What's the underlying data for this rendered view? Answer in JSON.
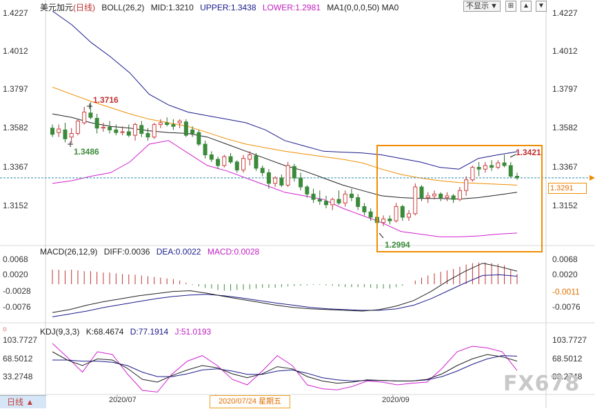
{
  "header": {
    "symbol": "美元加元",
    "period": "(日线)",
    "boll": "BOLL(26,2)",
    "boll_mid": "MID:1.3210",
    "boll_upper": "UPPER:1.3438",
    "boll_lower": "LOWER:1.2981",
    "ma": "MA1(0,0,0,50) MA0",
    "hide_label": "不显示",
    "hide_arrow": "▼"
  },
  "macd_header": {
    "name": "MACD(26,12,9)",
    "diff": "DIFF:0.0036",
    "dea": "DEA:0.0022",
    "macd": "MACD:0.0028"
  },
  "kdj_header": {
    "name": "KDJ(9,3,3)",
    "k": "K:68.4674",
    "d": "D:77.1914",
    "j": "J:51.0193"
  },
  "price_axis": [
    "1.4227",
    "1.4012",
    "1.3797",
    "1.3582",
    "1.3367",
    "1.3152"
  ],
  "macd_axis_left": [
    "0.0068",
    "0.0020",
    "-0.0028",
    "-0.0076"
  ],
  "macd_axis_right": [
    "0.0068",
    "0.0020",
    "-0.0011",
    "-0.0076"
  ],
  "kdj_axis_left": [
    "103.7727",
    "68.5012",
    "33.2748"
  ],
  "kdj_axis_right": [
    "103.7727",
    "68.5012",
    "33.2748"
  ],
  "current_price": "1.3291",
  "annotations": {
    "high1": "1.3716",
    "low1": "1.3486",
    "low2": "1.2994",
    "high2": "1.3421"
  },
  "x_labels": {
    "jul": "2020/07",
    "sep": "2020/09",
    "crosshair": "2020/07/24 星期五"
  },
  "range_tab": "日线 ▲",
  "watermark": "FX678",
  "icons": {
    "sun": "sun-icon",
    "cross": "crosshair-icon",
    "up": "arrow-up-icon",
    "down": "arrow-down-icon"
  },
  "chart_data": {
    "type": "candlestick",
    "price_range": [
      1.2915,
      1.4227
    ],
    "candles": [
      {
        "o": 1.357,
        "h": 1.359,
        "l": 1.352,
        "c": 1.3535
      },
      {
        "o": 1.3545,
        "h": 1.359,
        "l": 1.352,
        "c": 1.3565
      },
      {
        "o": 1.356,
        "h": 1.36,
        "l": 1.349,
        "c": 1.351
      },
      {
        "o": 1.352,
        "h": 1.357,
        "l": 1.3486,
        "c": 1.354
      },
      {
        "o": 1.354,
        "h": 1.362,
        "l": 1.353,
        "c": 1.361
      },
      {
        "o": 1.36,
        "h": 1.369,
        "l": 1.359,
        "c": 1.366
      },
      {
        "o": 1.3655,
        "h": 1.3716,
        "l": 1.362,
        "c": 1.363
      },
      {
        "o": 1.3625,
        "h": 1.365,
        "l": 1.354,
        "c": 1.357
      },
      {
        "o": 1.357,
        "h": 1.36,
        "l": 1.355,
        "c": 1.3575
      },
      {
        "o": 1.3575,
        "h": 1.361,
        "l": 1.354,
        "c": 1.356
      },
      {
        "o": 1.356,
        "h": 1.359,
        "l": 1.353,
        "c": 1.3545
      },
      {
        "o": 1.3545,
        "h": 1.358,
        "l": 1.353,
        "c": 1.355
      },
      {
        "o": 1.355,
        "h": 1.359,
        "l": 1.352,
        "c": 1.353
      },
      {
        "o": 1.353,
        "h": 1.36,
        "l": 1.35,
        "c": 1.359
      },
      {
        "o": 1.3585,
        "h": 1.361,
        "l": 1.352,
        "c": 1.354
      },
      {
        "o": 1.354,
        "h": 1.357,
        "l": 1.35,
        "c": 1.352
      },
      {
        "o": 1.352,
        "h": 1.36,
        "l": 1.351,
        "c": 1.359
      },
      {
        "o": 1.359,
        "h": 1.362,
        "l": 1.357,
        "c": 1.36
      },
      {
        "o": 1.36,
        "h": 1.363,
        "l": 1.358,
        "c": 1.359
      },
      {
        "o": 1.359,
        "h": 1.362,
        "l": 1.356,
        "c": 1.358
      },
      {
        "o": 1.36,
        "h": 1.362,
        "l": 1.357,
        "c": 1.361
      },
      {
        "o": 1.3605,
        "h": 1.362,
        "l": 1.352,
        "c": 1.353
      },
      {
        "o": 1.356,
        "h": 1.358,
        "l": 1.352,
        "c": 1.354
      },
      {
        "o": 1.3545,
        "h": 1.356,
        "l": 1.347,
        "c": 1.348
      },
      {
        "o": 1.348,
        "h": 1.35,
        "l": 1.34,
        "c": 1.342
      },
      {
        "o": 1.342,
        "h": 1.344,
        "l": 1.338,
        "c": 1.3395
      },
      {
        "o": 1.3395,
        "h": 1.341,
        "l": 1.334,
        "c": 1.336
      },
      {
        "o": 1.336,
        "h": 1.342,
        "l": 1.335,
        "c": 1.341
      },
      {
        "o": 1.341,
        "h": 1.343,
        "l": 1.337,
        "c": 1.338
      },
      {
        "o": 1.338,
        "h": 1.339,
        "l": 1.332,
        "c": 1.3335
      },
      {
        "o": 1.3335,
        "h": 1.342,
        "l": 1.332,
        "c": 1.34
      },
      {
        "o": 1.3395,
        "h": 1.344,
        "l": 1.336,
        "c": 1.342
      },
      {
        "o": 1.3415,
        "h": 1.343,
        "l": 1.333,
        "c": 1.3345
      },
      {
        "o": 1.3345,
        "h": 1.336,
        "l": 1.33,
        "c": 1.332
      },
      {
        "o": 1.332,
        "h": 1.334,
        "l": 1.323,
        "c": 1.326
      },
      {
        "o": 1.326,
        "h": 1.33,
        "l": 1.324,
        "c": 1.329
      },
      {
        "o": 1.329,
        "h": 1.331,
        "l": 1.324,
        "c": 1.325
      },
      {
        "o": 1.325,
        "h": 1.338,
        "l": 1.324,
        "c": 1.336
      },
      {
        "o": 1.3355,
        "h": 1.337,
        "l": 1.327,
        "c": 1.329
      },
      {
        "o": 1.329,
        "h": 1.332,
        "l": 1.322,
        "c": 1.324
      },
      {
        "o": 1.324,
        "h": 1.325,
        "l": 1.318,
        "c": 1.32
      },
      {
        "o": 1.32,
        "h": 1.323,
        "l": 1.315,
        "c": 1.317
      },
      {
        "o": 1.317,
        "h": 1.322,
        "l": 1.314,
        "c": 1.316
      },
      {
        "o": 1.316,
        "h": 1.319,
        "l": 1.312,
        "c": 1.314
      },
      {
        "o": 1.314,
        "h": 1.318,
        "l": 1.311,
        "c": 1.317
      },
      {
        "o": 1.317,
        "h": 1.322,
        "l": 1.314,
        "c": 1.315
      },
      {
        "o": 1.315,
        "h": 1.322,
        "l": 1.313,
        "c": 1.32
      },
      {
        "o": 1.32,
        "h": 1.323,
        "l": 1.316,
        "c": 1.318
      },
      {
        "o": 1.318,
        "h": 1.32,
        "l": 1.311,
        "c": 1.313
      },
      {
        "o": 1.313,
        "h": 1.315,
        "l": 1.308,
        "c": 1.31
      },
      {
        "o": 1.31,
        "h": 1.312,
        "l": 1.305,
        "c": 1.307
      },
      {
        "o": 1.307,
        "h": 1.309,
        "l": 1.2994,
        "c": 1.304
      },
      {
        "o": 1.304,
        "h": 1.308,
        "l": 1.302,
        "c": 1.306
      },
      {
        "o": 1.306,
        "h": 1.308,
        "l": 1.303,
        "c": 1.305
      },
      {
        "o": 1.305,
        "h": 1.315,
        "l": 1.304,
        "c": 1.313
      },
      {
        "o": 1.313,
        "h": 1.314,
        "l": 1.305,
        "c": 1.307
      },
      {
        "o": 1.307,
        "h": 1.311,
        "l": 1.305,
        "c": 1.309
      },
      {
        "o": 1.309,
        "h": 1.326,
        "l": 1.308,
        "c": 1.324
      },
      {
        "o": 1.324,
        "h": 1.325,
        "l": 1.316,
        "c": 1.318
      },
      {
        "o": 1.318,
        "h": 1.321,
        "l": 1.315,
        "c": 1.319
      },
      {
        "o": 1.319,
        "h": 1.322,
        "l": 1.317,
        "c": 1.32
      },
      {
        "o": 1.32,
        "h": 1.321,
        "l": 1.316,
        "c": 1.318
      },
      {
        "o": 1.318,
        "h": 1.321,
        "l": 1.316,
        "c": 1.319
      },
      {
        "o": 1.319,
        "h": 1.32,
        "l": 1.315,
        "c": 1.317
      },
      {
        "o": 1.317,
        "h": 1.324,
        "l": 1.316,
        "c": 1.322
      },
      {
        "o": 1.322,
        "h": 1.33,
        "l": 1.319,
        "c": 1.328
      },
      {
        "o": 1.328,
        "h": 1.336,
        "l": 1.327,
        "c": 1.335
      },
      {
        "o": 1.335,
        "h": 1.338,
        "l": 1.33,
        "c": 1.334
      },
      {
        "o": 1.334,
        "h": 1.338,
        "l": 1.332,
        "c": 1.336
      },
      {
        "o": 1.336,
        "h": 1.339,
        "l": 1.333,
        "c": 1.335
      },
      {
        "o": 1.335,
        "h": 1.339,
        "l": 1.334,
        "c": 1.3375
      },
      {
        "o": 1.3375,
        "h": 1.3421,
        "l": 1.335,
        "c": 1.336
      },
      {
        "o": 1.336,
        "h": 1.338,
        "l": 1.329,
        "c": 1.33
      },
      {
        "o": 1.33,
        "h": 1.332,
        "l": 1.328,
        "c": 1.3291
      }
    ],
    "boll_upper_series": [
      1.4227,
      1.415,
      1.405,
      1.397,
      1.388,
      1.376,
      1.37,
      1.366,
      1.364,
      1.362,
      1.36,
      1.356,
      1.35,
      1.347,
      1.344,
      1.3435,
      1.3431,
      1.342,
      1.34,
      1.338,
      1.335,
      1.334,
      1.34,
      1.342,
      1.3438
    ],
    "boll_mid_series": [
      1.365,
      1.363,
      1.36,
      1.358,
      1.357,
      1.3555,
      1.3545,
      1.354,
      1.352,
      1.348,
      1.344,
      1.34,
      1.336,
      1.333,
      1.329,
      1.325,
      1.322,
      1.319,
      1.318,
      1.3175,
      1.3175,
      1.3172,
      1.318,
      1.3195,
      1.321
    ],
    "boll_lower_series": [
      1.326,
      1.3275,
      1.33,
      1.332,
      1.338,
      1.348,
      1.35,
      1.343,
      1.336,
      1.333,
      1.329,
      1.325,
      1.321,
      1.319,
      1.317,
      1.312,
      1.308,
      1.304,
      1.299,
      1.2975,
      1.296,
      1.296,
      1.2965,
      1.2975,
      1.2981
    ],
    "ma50_series": [
      1.38,
      1.376,
      1.372,
      1.3685,
      1.365,
      1.362,
      1.36,
      1.358,
      1.3545,
      1.351,
      1.348,
      1.346,
      1.344,
      1.3425,
      1.341,
      1.3395,
      1.3375,
      1.334,
      1.331,
      1.329,
      1.3275,
      1.3265,
      1.326,
      1.3255,
      1.325
    ],
    "macd_range": [
      -0.0095,
      0.008
    ],
    "macd_hist": [
      0.004,
      0.004,
      0.0038,
      0.004,
      0.0038,
      0.0036,
      0.0036,
      0.0034,
      0.0032,
      0.0032,
      0.003,
      0.0028,
      0.0027,
      0.0026,
      0.0024,
      0.0022,
      0.002,
      0.0018,
      0.0016,
      0.0014,
      0.001,
      0.0004,
      -0.0002,
      -0.0006,
      -0.001,
      -0.0012,
      -0.0016,
      -0.0018,
      -0.0018,
      -0.0016,
      -0.0016,
      -0.0014,
      -0.0012,
      -0.001,
      -0.001,
      -0.001,
      -0.0008,
      -0.0006,
      -0.0005,
      -0.0004,
      -0.0003,
      -0.0002,
      -0.0002,
      -0.0003,
      -0.0004,
      -0.0006,
      -0.0008,
      -0.0008,
      -0.0008,
      -0.0008,
      -0.001,
      -0.0012,
      -0.0012,
      -0.0012,
      -0.0008,
      -0.0004,
      0.0,
      0.001,
      0.0018,
      0.0024,
      0.003,
      0.0034,
      0.0038,
      0.0042,
      0.0048,
      0.0054,
      0.0058,
      0.006,
      0.006,
      0.0058,
      0.0056,
      0.0052,
      0.004,
      0.0028
    ],
    "macd_diff_series": [
      -0.0078,
      -0.007,
      -0.0058,
      -0.0048,
      -0.004,
      -0.0032,
      -0.0026,
      -0.002,
      -0.0018,
      -0.0025,
      -0.0034,
      -0.0042,
      -0.005,
      -0.0058,
      -0.0064,
      -0.0068,
      -0.007,
      -0.0072,
      -0.0074,
      -0.007,
      -0.006,
      -0.0045,
      -0.002,
      0.001,
      0.0036,
      0.0058,
      0.0048,
      0.0036
    ],
    "macd_dea_series": [
      -0.009,
      -0.0082,
      -0.0074,
      -0.0064,
      -0.0056,
      -0.0048,
      -0.004,
      -0.0034,
      -0.003,
      -0.0028,
      -0.0032,
      -0.0038,
      -0.0045,
      -0.0052,
      -0.0058,
      -0.0064,
      -0.0068,
      -0.007,
      -0.0072,
      -0.0072,
      -0.0068,
      -0.0058,
      -0.004,
      -0.0018,
      0.0004,
      0.0024,
      0.0026,
      0.0022
    ],
    "kdj_range": [
      10,
      115
    ],
    "kdj_k_series": [
      85,
      70,
      60,
      72,
      70,
      55,
      35,
      30,
      42,
      52,
      60,
      56,
      45,
      38,
      45,
      58,
      54,
      40,
      32,
      28,
      30,
      34,
      33,
      32,
      32,
      35,
      45,
      60,
      72,
      80,
      76,
      68
    ],
    "kdj_d_series": [
      70,
      70,
      68,
      68,
      66,
      60,
      48,
      40,
      40,
      45,
      52,
      54,
      50,
      44,
      44,
      50,
      52,
      46,
      38,
      34,
      32,
      33,
      33,
      32,
      32,
      34,
      40,
      50,
      62,
      72,
      78,
      77
    ],
    "kdj_j_series": [
      100,
      75,
      48,
      85,
      80,
      45,
      15,
      12,
      45,
      68,
      78,
      60,
      35,
      25,
      50,
      78,
      60,
      25,
      18,
      16,
      22,
      32,
      30,
      25,
      28,
      30,
      55,
      85,
      95,
      92,
      85,
      51
    ]
  }
}
